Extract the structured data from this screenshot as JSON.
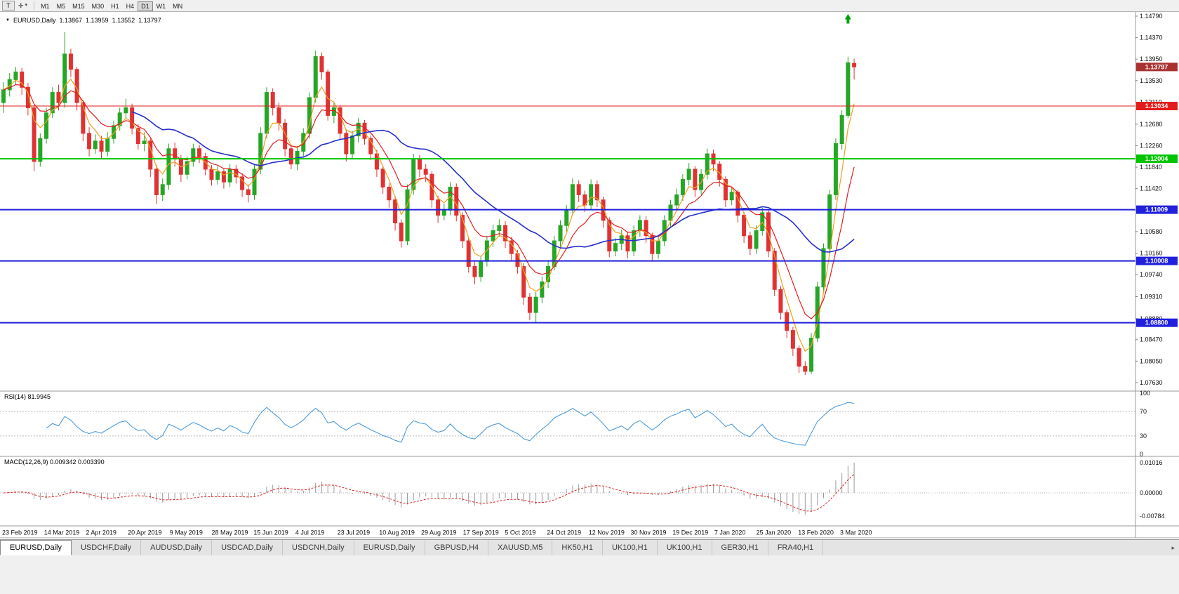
{
  "toolbar": {
    "button_t": "T",
    "timeframes": [
      "M1",
      "M5",
      "M15",
      "M30",
      "H1",
      "H4",
      "D1",
      "W1",
      "MN"
    ],
    "active_timeframe": "D1"
  },
  "icons": {
    "crosshair": "✛",
    "caret_down": "▾",
    "symbol_dropdown": "▼",
    "tab_scroll": "▸"
  },
  "quote_header": {
    "symbol": "EURUSD,Daily",
    "open": "1.13867",
    "high": "1.13959",
    "low": "1.13552",
    "close": "1.13797"
  },
  "tabs": {
    "active_index": 0,
    "items": [
      "EURUSD,Daily",
      "USDCHF,Daily",
      "AUDUSD,Daily",
      "USDCAD,Daily",
      "USDCNH,Daily",
      "EURUSD,Daily",
      "GBPUSD,H4",
      "XAUUSD,M5",
      "HK50,H1",
      "UK100,H1",
      "UK100,H1",
      "GER30,H1",
      "FRA40,H1"
    ]
  },
  "chart_data": {
    "type": "candlestick",
    "symbol": "EURUSD",
    "timeframe": "Daily",
    "ylim": [
      1.0763,
      1.1479
    ],
    "colors": {
      "up": "#26a626",
      "down": "#e03232",
      "background": "#ffffff",
      "axis_text": "#111111",
      "grid": "#b8b8b8",
      "current_label_bg": "#a83232"
    },
    "price_ticks": [
      "1.14790",
      "1.14370",
      "1.13950",
      "1.13530",
      "1.13110",
      "1.12680",
      "1.12260",
      "1.11840",
      "1.11420",
      "1.11000",
      "1.10580",
      "1.10160",
      "1.09740",
      "1.09310",
      "1.08880",
      "1.08470",
      "1.08050",
      "1.07630"
    ],
    "x_dates": [
      "23 Feb 2019",
      "14 Mar 2019",
      "2 Apr 2019",
      "20 Apr 2019",
      "9 May 2019",
      "28 May 2019",
      "15 Jun 2019",
      "4 Jul 2019",
      "23 Jul 2019",
      "10 Aug 2019",
      "29 Aug 2019",
      "17 Sep 2019",
      "5 Oct 2019",
      "24 Oct 2019",
      "12 Nov 2019",
      "30 Nov 2019",
      "19 Dec 2019",
      "7 Jan 2020",
      "25 Jan 2020",
      "13 Feb 2020",
      "3 Mar 2020"
    ],
    "hlines": [
      {
        "price": 1.13034,
        "color": "#e31b1b",
        "width": 1
      },
      {
        "price": 1.12004,
        "color": "#00c400",
        "width": 2
      },
      {
        "price": 1.11009,
        "color": "#2020dd",
        "width": 2
      },
      {
        "price": 1.10008,
        "color": "#2020dd",
        "width": 2
      },
      {
        "price": 1.088,
        "color": "#2020dd",
        "width": 2
      }
    ],
    "current_price": 1.13797,
    "marker": {
      "index": 138,
      "price": 1.1483,
      "color": "#00a000",
      "shape": "arrow-up"
    },
    "moving_averages": [
      {
        "name": "fast",
        "type": "ema",
        "period": 4,
        "color": "#f0a020",
        "width": 1.2
      },
      {
        "name": "medium",
        "type": "ema",
        "period": 9,
        "color": "#e02020",
        "width": 1.2
      },
      {
        "name": "slow",
        "type": "sma",
        "period": 22,
        "color": "#2430c8",
        "width": 1.6
      }
    ],
    "rsi": {
      "header": "RSI(14) 81.9945",
      "render_period": 7,
      "levels": [
        100,
        70,
        30,
        0
      ],
      "color": "#4f9bd8"
    },
    "macd": {
      "header": "MACD(12,26,9) 0.009342 0.003390",
      "render_fast": 6,
      "render_slow": 13,
      "render_signal": 5,
      "scale_to": 0.0102,
      "levels": [
        {
          "v": 0.01016,
          "t": "0.01016"
        },
        {
          "v": 0.0,
          "t": "0.00000"
        },
        {
          "v": -0.00784,
          "t": "-0.00784"
        }
      ],
      "hist_color": "#9a9a9a",
      "signal_color": "#e02020"
    },
    "candles": [
      [
        1.131,
        1.135,
        1.129,
        1.1335
      ],
      [
        1.1335,
        1.1368,
        1.1322,
        1.1355
      ],
      [
        1.1355,
        1.138,
        1.1345,
        1.137
      ],
      [
        1.137,
        1.1378,
        1.1325,
        1.134
      ],
      [
        1.134,
        1.1348,
        1.1285,
        1.13
      ],
      [
        1.13,
        1.1305,
        1.1176,
        1.1195
      ],
      [
        1.1195,
        1.125,
        1.1185,
        1.124
      ],
      [
        1.124,
        1.13,
        1.123,
        1.129
      ],
      [
        1.129,
        1.134,
        1.128,
        1.133
      ],
      [
        1.133,
        1.1345,
        1.1295,
        1.131
      ],
      [
        1.131,
        1.1448,
        1.13,
        1.1405
      ],
      [
        1.1405,
        1.1415,
        1.136,
        1.1375
      ],
      [
        1.1375,
        1.138,
        1.1295,
        1.131
      ],
      [
        1.131,
        1.1315,
        1.1235,
        1.125
      ],
      [
        1.125,
        1.1262,
        1.1205,
        1.122
      ],
      [
        1.122,
        1.1248,
        1.121,
        1.1235
      ],
      [
        1.1235,
        1.1245,
        1.12,
        1.1215
      ],
      [
        1.1215,
        1.1252,
        1.1205,
        1.124
      ],
      [
        1.124,
        1.1275,
        1.123,
        1.1265
      ],
      [
        1.1265,
        1.13,
        1.1255,
        1.129
      ],
      [
        1.129,
        1.1318,
        1.128,
        1.13
      ],
      [
        1.13,
        1.1308,
        1.1248,
        1.126
      ],
      [
        1.126,
        1.1268,
        1.1218,
        1.123
      ],
      [
        1.123,
        1.1252,
        1.1215,
        1.1235
      ],
      [
        1.1235,
        1.124,
        1.1165,
        1.118
      ],
      [
        1.118,
        1.1188,
        1.1112,
        1.113
      ],
      [
        1.113,
        1.1162,
        1.1118,
        1.115
      ],
      [
        1.115,
        1.123,
        1.114,
        1.122
      ],
      [
        1.122,
        1.1232,
        1.1185,
        1.12
      ],
      [
        1.12,
        1.1208,
        1.1155,
        1.117
      ],
      [
        1.117,
        1.1205,
        1.116,
        1.1195
      ],
      [
        1.1195,
        1.123,
        1.1185,
        1.122
      ],
      [
        1.122,
        1.1228,
        1.1192,
        1.1205
      ],
      [
        1.1205,
        1.1212,
        1.1168,
        1.118
      ],
      [
        1.118,
        1.1188,
        1.1148,
        1.116
      ],
      [
        1.116,
        1.1186,
        1.115,
        1.1175
      ],
      [
        1.1175,
        1.1182,
        1.1142,
        1.1155
      ],
      [
        1.1155,
        1.119,
        1.1145,
        1.118
      ],
      [
        1.118,
        1.1188,
        1.1152,
        1.1165
      ],
      [
        1.1165,
        1.1172,
        1.1126,
        1.114
      ],
      [
        1.114,
        1.115,
        1.1115,
        1.113
      ],
      [
        1.113,
        1.119,
        1.112,
        1.118
      ],
      [
        1.118,
        1.1262,
        1.117,
        1.125
      ],
      [
        1.125,
        1.134,
        1.124,
        1.133
      ],
      [
        1.133,
        1.1338,
        1.1285,
        1.13
      ],
      [
        1.13,
        1.131,
        1.1255,
        1.127
      ],
      [
        1.127,
        1.1278,
        1.1205,
        1.122
      ],
      [
        1.122,
        1.1228,
        1.118,
        1.119
      ],
      [
        1.119,
        1.1225,
        1.1178,
        1.1215
      ],
      [
        1.1215,
        1.126,
        1.1205,
        1.125
      ],
      [
        1.125,
        1.133,
        1.124,
        1.132
      ],
      [
        1.132,
        1.1412,
        1.131,
        1.14
      ],
      [
        1.14,
        1.1408,
        1.1355,
        1.137
      ],
      [
        1.137,
        1.1375,
        1.1275,
        1.1285
      ],
      [
        1.1285,
        1.1312,
        1.127,
        1.13
      ],
      [
        1.13,
        1.1305,
        1.1238,
        1.125
      ],
      [
        1.125,
        1.1258,
        1.1195,
        1.121
      ],
      [
        1.121,
        1.1255,
        1.12,
        1.1245
      ],
      [
        1.1245,
        1.128,
        1.1232,
        1.127
      ],
      [
        1.127,
        1.1276,
        1.1228,
        1.124
      ],
      [
        1.124,
        1.1246,
        1.1198,
        1.121
      ],
      [
        1.121,
        1.1218,
        1.1165,
        1.118
      ],
      [
        1.118,
        1.1186,
        1.1132,
        1.1145
      ],
      [
        1.1145,
        1.1152,
        1.1105,
        1.112
      ],
      [
        1.112,
        1.1128,
        1.106,
        1.1075
      ],
      [
        1.1075,
        1.1082,
        1.1027,
        1.104
      ],
      [
        1.104,
        1.115,
        1.1032,
        1.114
      ],
      [
        1.114,
        1.121,
        1.113,
        1.12
      ],
      [
        1.12,
        1.1208,
        1.1165,
        1.118
      ],
      [
        1.118,
        1.119,
        1.1155,
        1.117
      ],
      [
        1.117,
        1.1176,
        1.1105,
        1.112
      ],
      [
        1.112,
        1.1128,
        1.1075,
        1.109
      ],
      [
        1.109,
        1.1112,
        1.108,
        1.11
      ],
      [
        1.11,
        1.1155,
        1.109,
        1.1145
      ],
      [
        1.1145,
        1.1152,
        1.1078,
        1.109
      ],
      [
        1.109,
        1.1096,
        1.1026,
        1.104
      ],
      [
        1.104,
        1.1046,
        1.0978,
        1.099
      ],
      [
        1.099,
        1.1,
        1.0955,
        1.097
      ],
      [
        1.097,
        1.101,
        1.096,
        1.1
      ],
      [
        1.1,
        1.105,
        1.099,
        1.104
      ],
      [
        1.104,
        1.1072,
        1.1028,
        1.106
      ],
      [
        1.106,
        1.1082,
        1.1048,
        1.107
      ],
      [
        1.107,
        1.1078,
        1.1026,
        1.104
      ],
      [
        1.104,
        1.1048,
        1.1002,
        1.1015
      ],
      [
        1.1015,
        1.1022,
        1.0976,
        1.099
      ],
      [
        1.099,
        1.0996,
        1.0915,
        1.093
      ],
      [
        1.093,
        1.0938,
        1.0885,
        1.09
      ],
      [
        1.09,
        1.094,
        1.0879,
        1.093
      ],
      [
        1.093,
        1.097,
        1.0918,
        1.096
      ],
      [
        1.096,
        1.1,
        1.0948,
        1.099
      ],
      [
        1.099,
        1.105,
        1.0982,
        1.104
      ],
      [
        1.104,
        1.108,
        1.1028,
        1.107
      ],
      [
        1.107,
        1.111,
        1.1058,
        1.11
      ],
      [
        1.11,
        1.1162,
        1.109,
        1.115
      ],
      [
        1.115,
        1.1158,
        1.1116,
        1.113
      ],
      [
        1.113,
        1.1138,
        1.1096,
        1.111
      ],
      [
        1.111,
        1.116,
        1.11,
        1.115
      ],
      [
        1.115,
        1.1158,
        1.1106,
        1.112
      ],
      [
        1.112,
        1.1126,
        1.1066,
        1.108
      ],
      [
        1.108,
        1.1086,
        1.1008,
        1.102
      ],
      [
        1.102,
        1.1045,
        1.101,
        1.1035
      ],
      [
        1.1035,
        1.1062,
        1.1022,
        1.105
      ],
      [
        1.105,
        1.1058,
        1.1006,
        1.102
      ],
      [
        1.102,
        1.107,
        1.101,
        1.106
      ],
      [
        1.106,
        1.109,
        1.1048,
        1.108
      ],
      [
        1.108,
        1.1088,
        1.1036,
        1.105
      ],
      [
        1.105,
        1.1056,
        1.1002,
        1.1015
      ],
      [
        1.1015,
        1.105,
        1.1005,
        1.104
      ],
      [
        1.104,
        1.109,
        1.103,
        1.108
      ],
      [
        1.108,
        1.112,
        1.1068,
        1.111
      ],
      [
        1.111,
        1.1142,
        1.1098,
        1.113
      ],
      [
        1.113,
        1.117,
        1.1118,
        1.116
      ],
      [
        1.116,
        1.1192,
        1.1148,
        1.118
      ],
      [
        1.118,
        1.1186,
        1.1126,
        1.114
      ],
      [
        1.114,
        1.118,
        1.113,
        1.117
      ],
      [
        1.117,
        1.122,
        1.116,
        1.121
      ],
      [
        1.121,
        1.1218,
        1.1176,
        1.119
      ],
      [
        1.119,
        1.1196,
        1.1146,
        1.116
      ],
      [
        1.116,
        1.1166,
        1.1106,
        1.112
      ],
      [
        1.112,
        1.1146,
        1.111,
        1.1135
      ],
      [
        1.1135,
        1.114,
        1.1076,
        1.109
      ],
      [
        1.109,
        1.1096,
        1.1036,
        1.105
      ],
      [
        1.105,
        1.1058,
        1.1012,
        1.1025
      ],
      [
        1.1025,
        1.107,
        1.1015,
        1.106
      ],
      [
        1.106,
        1.1105,
        1.105,
        1.1095
      ],
      [
        1.1095,
        1.11,
        1.1008,
        1.102
      ],
      [
        1.102,
        1.1026,
        1.0932,
        1.0945
      ],
      [
        1.0945,
        1.0952,
        1.0886,
        1.09
      ],
      [
        1.09,
        1.0906,
        1.085,
        1.0865
      ],
      [
        1.0865,
        1.0872,
        1.0815,
        1.083
      ],
      [
        1.083,
        1.0836,
        1.0782,
        1.0795
      ],
      [
        1.0795,
        1.0805,
        1.0778,
        1.0785
      ],
      [
        1.0785,
        1.086,
        1.078,
        1.085
      ],
      [
        1.085,
        1.096,
        1.0842,
        1.095
      ],
      [
        1.095,
        1.1035,
        1.094,
        1.1025
      ],
      [
        1.1025,
        1.114,
        1.1015,
        1.113
      ],
      [
        1.113,
        1.124,
        1.112,
        1.123
      ],
      [
        1.123,
        1.1295,
        1.1218,
        1.1285
      ],
      [
        1.1285,
        1.14,
        1.128,
        1.1388
      ],
      [
        1.13867,
        1.13959,
        1.13552,
        1.13797
      ]
    ]
  }
}
